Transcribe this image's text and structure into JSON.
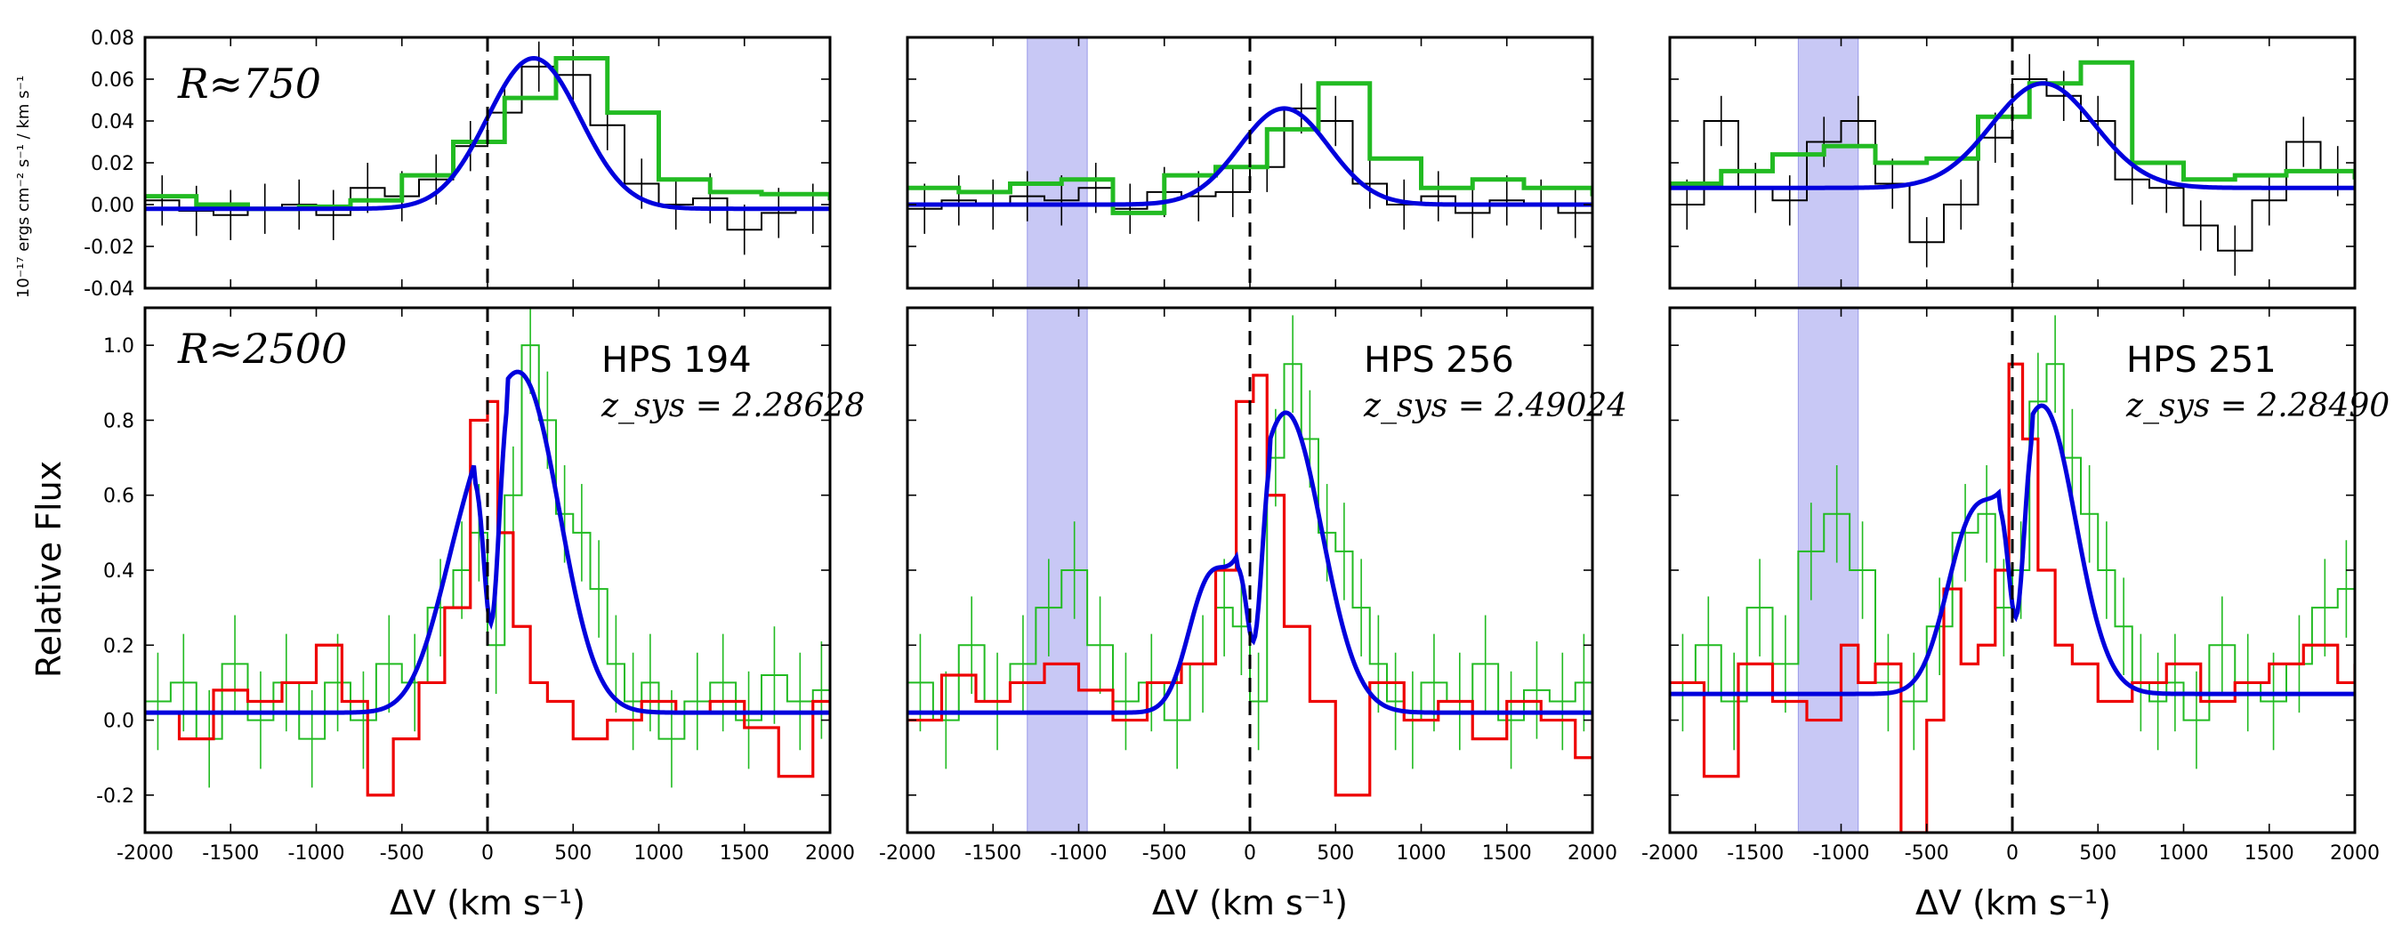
{
  "figure": {
    "ylabel_top": "10⁻¹⁷ ergs cm⁻² s⁻¹ / km s⁻¹",
    "ylabel_bottom": "Relative Flux",
    "xlabel": "ΔV (km s⁻¹)",
    "res_top": "R≈750",
    "res_bottom": "R≈2500",
    "colors": {
      "black": "#000000",
      "green": "#22bb22",
      "blue": "#0000dd",
      "red": "#ee0000",
      "band": "#c8c8f5"
    }
  },
  "chart_data": [
    {
      "type": "line",
      "panel": "HPS 194 low-res",
      "xlim": [
        -2000,
        2000
      ],
      "ylim": [
        -0.04,
        0.08
      ],
      "xticks": [
        -2000,
        -1500,
        -1000,
        -500,
        0,
        500,
        1000,
        1500,
        2000
      ],
      "yticks": [
        -0.04,
        -0.02,
        0.0,
        0.02,
        0.04,
        0.06,
        0.08
      ],
      "ytick_labels": [
        "-0.04",
        "-0.02",
        "0.00",
        "0.02",
        "0.04",
        "0.06",
        "0.08"
      ],
      "object": "",
      "zsys": "",
      "band": null,
      "series": [
        {
          "role": "data",
          "x": [
            -2000,
            -1800,
            -1600,
            -1400,
            -1200,
            -1000,
            -800,
            -600,
            -400,
            -200,
            0,
            200,
            400,
            600,
            800,
            1000,
            1200,
            1400,
            1600,
            1800,
            2000
          ],
          "y": [
            0.002,
            -0.003,
            -0.005,
            -0.002,
            0.0,
            -0.005,
            0.008,
            0.004,
            0.012,
            0.028,
            0.044,
            0.066,
            0.062,
            0.038,
            0.01,
            0.0,
            0.003,
            -0.012,
            -0.004,
            -0.002,
            -0.004
          ]
        },
        {
          "role": "model_step",
          "x": [
            -2000,
            -1700,
            -1400,
            -1100,
            -800,
            -500,
            -200,
            100,
            400,
            700,
            1000,
            1300,
            1600,
            2000
          ],
          "y": [
            0.004,
            0.0,
            -0.002,
            -0.001,
            0.002,
            0.014,
            0.03,
            0.051,
            0.07,
            0.044,
            0.012,
            0.006,
            0.005,
            0.002
          ]
        },
        {
          "role": "fit",
          "gauss": {
            "base": -0.002,
            "amp": 0.072,
            "mu": 270,
            "sigma": 270
          }
        }
      ]
    },
    {
      "type": "line",
      "panel": "HPS 256 low-res",
      "xlim": [
        -2000,
        2000
      ],
      "ylim": [
        -0.04,
        0.08
      ],
      "xticks": [
        -2000,
        -1500,
        -1000,
        -500,
        0,
        500,
        1000,
        1500,
        2000
      ],
      "yticks": [
        -0.04,
        -0.02,
        0.0,
        0.02,
        0.04,
        0.06,
        0.08
      ],
      "ytick_labels": [],
      "object": "",
      "zsys": "",
      "band": [
        -1300,
        -950
      ],
      "series": [
        {
          "role": "data",
          "x": [
            -2000,
            -1800,
            -1600,
            -1400,
            -1200,
            -1000,
            -800,
            -600,
            -400,
            -200,
            0,
            200,
            400,
            600,
            800,
            1000,
            1200,
            1400,
            1600,
            1800,
            2000
          ],
          "y": [
            -0.002,
            0.002,
            0.0,
            0.004,
            0.002,
            0.008,
            -0.002,
            0.006,
            0.004,
            0.006,
            0.018,
            0.046,
            0.04,
            0.01,
            0.0,
            0.004,
            -0.004,
            0.002,
            0.0,
            -0.004,
            0.002
          ]
        },
        {
          "role": "model_step",
          "x": [
            -2000,
            -1700,
            -1400,
            -1100,
            -800,
            -500,
            -200,
            100,
            400,
            700,
            1000,
            1300,
            1600,
            2000
          ],
          "y": [
            0.008,
            0.006,
            0.01,
            0.012,
            -0.004,
            0.014,
            0.018,
            0.036,
            0.058,
            0.022,
            0.008,
            0.012,
            0.008,
            0.004
          ]
        },
        {
          "role": "fit",
          "gauss": {
            "base": 0.0,
            "amp": 0.046,
            "mu": 200,
            "sigma": 260
          }
        }
      ]
    },
    {
      "type": "line",
      "panel": "HPS 251 low-res",
      "xlim": [
        -2000,
        2000
      ],
      "ylim": [
        -0.04,
        0.08
      ],
      "xticks": [
        -2000,
        -1500,
        -1000,
        -500,
        0,
        500,
        1000,
        1500,
        2000
      ],
      "yticks": [
        -0.04,
        -0.02,
        0.0,
        0.02,
        0.04,
        0.06,
        0.08
      ],
      "ytick_labels": [],
      "object": "",
      "zsys": "",
      "band": [
        -1250,
        -900
      ],
      "series": [
        {
          "role": "data",
          "x": [
            -2000,
            -1800,
            -1600,
            -1400,
            -1200,
            -1000,
            -800,
            -600,
            -400,
            -200,
            0,
            200,
            400,
            600,
            800,
            1000,
            1200,
            1400,
            1600,
            1800,
            2000
          ],
          "y": [
            0.0,
            0.04,
            0.008,
            0.002,
            0.03,
            0.04,
            0.01,
            -0.018,
            0.0,
            0.032,
            0.06,
            0.052,
            0.04,
            0.012,
            0.008,
            -0.01,
            -0.022,
            0.002,
            0.03,
            0.016,
            0.01
          ]
        },
        {
          "role": "model_step",
          "x": [
            -2000,
            -1700,
            -1400,
            -1100,
            -800,
            -500,
            -200,
            100,
            400,
            700,
            1000,
            1300,
            1600,
            2000
          ],
          "y": [
            0.01,
            0.016,
            0.024,
            0.028,
            0.02,
            0.022,
            0.042,
            0.058,
            0.068,
            0.02,
            0.012,
            0.014,
            0.016,
            0.012
          ]
        },
        {
          "role": "fit",
          "gauss": {
            "base": 0.008,
            "amp": 0.05,
            "mu": 180,
            "sigma": 300
          }
        }
      ]
    },
    {
      "type": "line",
      "panel": "HPS 194 high-res",
      "xlim": [
        -2000,
        2000
      ],
      "ylim": [
        -0.3,
        1.1
      ],
      "xticks": [
        -2000,
        -1500,
        -1000,
        -500,
        0,
        500,
        1000,
        1500,
        2000
      ],
      "xtick_labels": [
        "-2000",
        "-1500",
        "-1000",
        "-500",
        "0",
        "500",
        "1000",
        "1500",
        "2000"
      ],
      "yticks": [
        -0.2,
        0.0,
        0.2,
        0.4,
        0.6,
        0.8,
        1.0
      ],
      "ytick_labels": [
        "-0.2",
        "0.0",
        "0.2",
        "0.4",
        "0.6",
        "0.8",
        "1.0"
      ],
      "object": "HPS 194",
      "zsys": "z_sys = 2.28628",
      "band": null,
      "series": [
        {
          "role": "data",
          "x": [
            -2000,
            -1850,
            -1700,
            -1550,
            -1400,
            -1250,
            -1100,
            -950,
            -800,
            -650,
            -500,
            -350,
            -200,
            -100,
            0,
            100,
            200,
            300,
            400,
            500,
            600,
            700,
            800,
            900,
            1000,
            1150,
            1300,
            1450,
            1600,
            1750,
            1900,
            2000
          ],
          "y": [
            0.05,
            0.1,
            -0.05,
            0.15,
            0.0,
            0.1,
            -0.05,
            0.1,
            0.0,
            0.15,
            0.1,
            0.3,
            0.4,
            0.5,
            0.2,
            0.6,
            1.0,
            0.8,
            0.55,
            0.5,
            0.35,
            0.15,
            0.05,
            0.1,
            -0.05,
            0.05,
            0.1,
            0.0,
            0.12,
            0.05,
            0.08,
            0.02
          ]
        },
        {
          "role": "model_step",
          "x": [
            -2000,
            -1800,
            -1600,
            -1400,
            -1200,
            -1000,
            -850,
            -700,
            -550,
            -400,
            -250,
            -100,
            0,
            60,
            150,
            250,
            350,
            500,
            700,
            900,
            1100,
            1300,
            1500,
            1700,
            1900,
            2000
          ],
          "y": [
            0.02,
            -0.05,
            0.08,
            0.05,
            0.1,
            0.2,
            0.05,
            -0.2,
            -0.05,
            0.1,
            0.3,
            0.8,
            0.85,
            0.5,
            0.25,
            0.1,
            0.05,
            -0.05,
            0.0,
            0.05,
            0.02,
            0.05,
            -0.02,
            -0.15,
            0.05,
            0.0
          ]
        },
        {
          "role": "fit",
          "gauss2": {
            "base": 0.02,
            "amp1": 0.37,
            "mu1": -130,
            "s1": 180,
            "amp2": 0.84,
            "mu2": 220,
            "s2": 210
          }
        }
      ]
    },
    {
      "type": "line",
      "panel": "HPS 256 high-res",
      "xlim": [
        -2000,
        2000
      ],
      "ylim": [
        -0.3,
        1.1
      ],
      "xticks": [
        -2000,
        -1500,
        -1000,
        -500,
        0,
        500,
        1000,
        1500,
        2000
      ],
      "xtick_labels": [
        "-2000",
        "-1500",
        "-1000",
        "-500",
        "0",
        "500",
        "1000",
        "1500",
        "2000"
      ],
      "yticks": [
        -0.2,
        0.0,
        0.2,
        0.4,
        0.6,
        0.8,
        1.0
      ],
      "ytick_labels": [],
      "object": "HPS 256",
      "zsys": "z_sys = 2.49024",
      "band": [
        -1300,
        -950
      ],
      "series": [
        {
          "role": "data",
          "x": [
            -2000,
            -1850,
            -1700,
            -1550,
            -1400,
            -1250,
            -1100,
            -950,
            -800,
            -650,
            -500,
            -350,
            -200,
            -100,
            0,
            100,
            200,
            300,
            400,
            500,
            600,
            700,
            800,
            900,
            1000,
            1150,
            1300,
            1450,
            1600,
            1750,
            1900,
            2000
          ],
          "y": [
            0.1,
            0.0,
            0.2,
            0.05,
            0.15,
            0.3,
            0.4,
            0.2,
            0.05,
            0.1,
            0.0,
            0.15,
            0.3,
            0.25,
            0.05,
            0.7,
            0.95,
            0.75,
            0.5,
            0.45,
            0.3,
            0.15,
            0.05,
            0.0,
            0.1,
            0.05,
            0.15,
            0.0,
            0.08,
            0.05,
            0.1,
            0.02
          ]
        },
        {
          "role": "model_step",
          "x": [
            -2000,
            -1800,
            -1600,
            -1400,
            -1200,
            -1000,
            -800,
            -600,
            -400,
            -200,
            -80,
            20,
            100,
            200,
            350,
            500,
            700,
            900,
            1100,
            1300,
            1500,
            1700,
            1900,
            2000
          ],
          "y": [
            0.0,
            0.12,
            0.05,
            0.1,
            0.15,
            0.08,
            0.0,
            0.1,
            0.15,
            0.4,
            0.85,
            0.92,
            0.6,
            0.25,
            0.05,
            -0.2,
            0.1,
            0.0,
            0.05,
            -0.05,
            0.05,
            0.0,
            -0.1,
            0.0
          ]
        },
        {
          "role": "fit",
          "gauss2": {
            "base": 0.02,
            "amp1": 0.29,
            "mu1": -250,
            "s1": 120,
            "amp2": 0.8,
            "mu2": 210,
            "s2": 210
          }
        }
      ]
    },
    {
      "type": "line",
      "panel": "HPS 251 high-res",
      "xlim": [
        -2000,
        2000
      ],
      "ylim": [
        -0.3,
        1.1
      ],
      "xticks": [
        -2000,
        -1500,
        -1000,
        -500,
        0,
        500,
        1000,
        1500,
        2000
      ],
      "xtick_labels": [
        "-2000",
        "-1500",
        "-1000",
        "-500",
        "0",
        "500",
        "1000",
        "1500",
        "2000"
      ],
      "yticks": [
        -0.2,
        0.0,
        0.2,
        0.4,
        0.6,
        0.8,
        1.0
      ],
      "ytick_labels": [],
      "object": "HPS 251",
      "zsys": "z_sys = 2.28490",
      "band": [
        -1250,
        -900
      ],
      "series": [
        {
          "role": "data",
          "x": [
            -2000,
            -1850,
            -1700,
            -1550,
            -1400,
            -1250,
            -1100,
            -950,
            -800,
            -650,
            -500,
            -350,
            -200,
            -100,
            0,
            100,
            200,
            300,
            400,
            500,
            600,
            700,
            800,
            900,
            1000,
            1150,
            1300,
            1450,
            1600,
            1750,
            1900,
            2000
          ],
          "y": [
            0.1,
            0.2,
            0.05,
            0.3,
            0.15,
            0.45,
            0.55,
            0.4,
            0.1,
            0.05,
            0.25,
            0.5,
            0.55,
            0.3,
            0.4,
            0.85,
            0.95,
            0.7,
            0.55,
            0.4,
            0.25,
            0.1,
            0.05,
            0.1,
            0.0,
            0.2,
            0.1,
            0.05,
            0.15,
            0.3,
            0.35,
            0.1
          ]
        },
        {
          "role": "model_step",
          "x": [
            -2000,
            -1800,
            -1600,
            -1400,
            -1200,
            -1000,
            -900,
            -800,
            -650,
            -500,
            -400,
            -300,
            -200,
            -100,
            -20,
            60,
            150,
            250,
            350,
            500,
            700,
            900,
            1100,
            1300,
            1500,
            1700,
            1900,
            2000
          ],
          "y": [
            0.1,
            -0.15,
            0.15,
            0.05,
            0.0,
            0.2,
            0.1,
            0.15,
            -0.3,
            0.0,
            0.35,
            0.15,
            0.2,
            0.4,
            0.95,
            0.75,
            0.4,
            0.2,
            0.15,
            0.05,
            0.1,
            0.15,
            0.05,
            0.1,
            0.15,
            0.2,
            0.1,
            0.15
          ]
        },
        {
          "role": "fit",
          "gauss2": {
            "base": 0.07,
            "amp1": 0.42,
            "mu1": -240,
            "s1": 150,
            "amp2": 0.76,
            "mu2": 180,
            "s2": 190
          }
        }
      ]
    }
  ]
}
